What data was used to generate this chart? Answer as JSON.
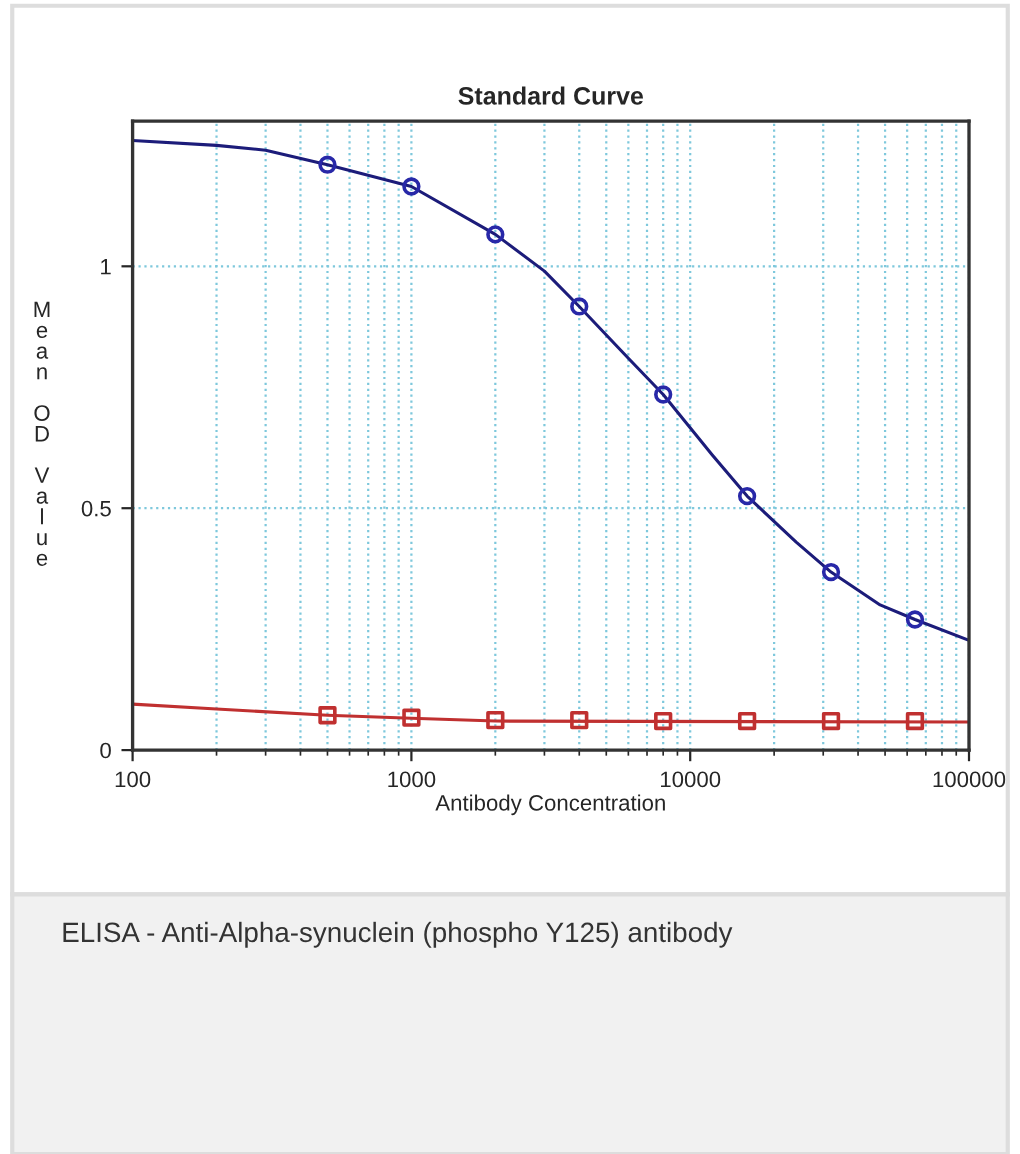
{
  "chart_data": {
    "type": "scatter",
    "title": "Standard Curve",
    "xlabel": "Antibody Concentration",
    "ylabel": "M\ne\na\nn\n\nO\nD\n\nV\na\nl\nu\ne",
    "log": "x",
    "xlim": [
      100,
      100000
    ],
    "xticks": [
      100,
      1000,
      10000,
      100000
    ],
    "ylim": [
      0,
      1.3
    ],
    "yticks": [
      0,
      0.5,
      1
    ],
    "grid": true,
    "series": [
      {
        "type": "line",
        "color": "#1c1c7a",
        "marker": "none",
        "x": [
          100,
          200,
          300,
          500,
          1000,
          2000,
          3000,
          4000,
          6000,
          8000,
          12000,
          16000,
          24000,
          32000,
          48000,
          64000,
          100000
        ],
        "values": [
          1.26,
          1.25,
          1.24,
          1.21,
          1.165,
          1.066,
          0.99,
          0.917,
          0.81,
          0.735,
          0.61,
          0.525,
          0.43,
          0.368,
          0.3,
          0.27,
          0.227
        ]
      },
      {
        "color": "#2828a8",
        "marker": "circle",
        "x": [
          500,
          1000,
          2000,
          4000,
          8000,
          16000,
          32000,
          64000
        ],
        "values": [
          1.21,
          1.165,
          1.066,
          0.917,
          0.735,
          0.525,
          0.368,
          0.27
        ]
      },
      {
        "type": "line",
        "color": "#c03030",
        "marker": "none",
        "x": [
          100,
          200,
          500,
          1000,
          2000,
          100000
        ],
        "values": [
          0.095,
          0.085,
          0.072,
          0.066,
          0.06,
          0.058
        ]
      },
      {
        "color": "#c03030",
        "marker": "square",
        "x": [
          500,
          1000,
          2000,
          4000,
          8000,
          16000,
          32000,
          64000
        ],
        "values": [
          0.072,
          0.067,
          0.062,
          0.062,
          0.06,
          0.06,
          0.06,
          0.06
        ]
      }
    ],
    "annotations": [
      "ELISA - Anti-Alpha-synuclein (phospho Y125) antibody"
    ]
  }
}
